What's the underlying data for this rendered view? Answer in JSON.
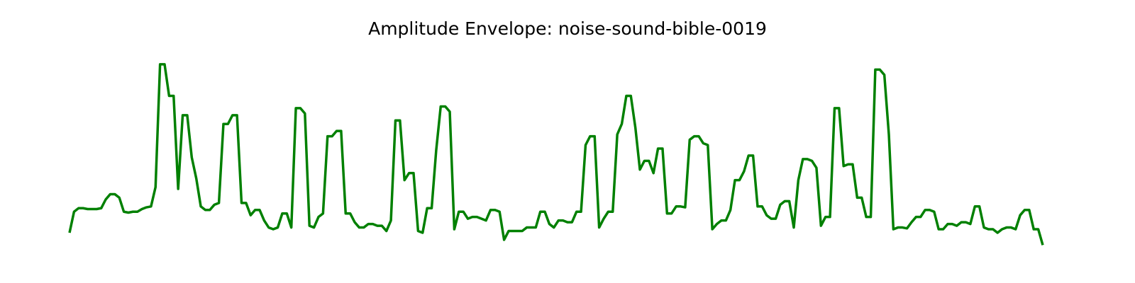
{
  "title": "Amplitude Envelope: noise-sound-bible-0019",
  "chart_data": {
    "type": "line",
    "title": "Amplitude Envelope: noise-sound-bible-0019",
    "xlabel": "",
    "ylabel": "",
    "axes_visible": false,
    "grid": false,
    "color": "#008000",
    "ylim": [
      0,
      1
    ],
    "values": [
      0.0,
      0.12,
      0.14,
      0.14,
      0.135,
      0.135,
      0.135,
      0.14,
      0.19,
      0.22,
      0.22,
      0.2,
      0.12,
      0.115,
      0.12,
      0.12,
      0.135,
      0.145,
      0.15,
      0.26,
      0.96,
      0.96,
      0.78,
      0.78,
      0.25,
      0.67,
      0.67,
      0.43,
      0.31,
      0.15,
      0.13,
      0.13,
      0.16,
      0.17,
      0.62,
      0.62,
      0.67,
      0.67,
      0.17,
      0.17,
      0.1,
      0.13,
      0.13,
      0.07,
      0.03,
      0.02,
      0.03,
      0.11,
      0.11,
      0.03,
      0.71,
      0.71,
      0.68,
      0.04,
      0.03,
      0.09,
      0.11,
      0.55,
      0.55,
      0.58,
      0.58,
      0.11,
      0.11,
      0.06,
      0.03,
      0.03,
      0.05,
      0.05,
      0.04,
      0.04,
      0.01,
      0.07,
      0.64,
      0.64,
      0.3,
      0.34,
      0.34,
      0.01,
      0.0,
      0.14,
      0.14,
      0.47,
      0.72,
      0.72,
      0.69,
      0.02,
      0.12,
      0.12,
      0.08,
      0.09,
      0.09,
      0.08,
      0.07,
      0.13,
      0.13,
      0.12,
      -0.04,
      0.01,
      0.01,
      0.01,
      0.01,
      0.03,
      0.03,
      0.03,
      0.12,
      0.12,
      0.05,
      0.03,
      0.07,
      0.07,
      0.06,
      0.06,
      0.12,
      0.12,
      0.5,
      0.55,
      0.55,
      0.03,
      0.08,
      0.12,
      0.12,
      0.56,
      0.62,
      0.78,
      0.78,
      0.6,
      0.36,
      0.41,
      0.41,
      0.34,
      0.48,
      0.48,
      0.11,
      0.11,
      0.15,
      0.15,
      0.145,
      0.53,
      0.55,
      0.55,
      0.51,
      0.5,
      0.02,
      0.05,
      0.07,
      0.07,
      0.13,
      0.3,
      0.3,
      0.35,
      0.44,
      0.44,
      0.15,
      0.15,
      0.1,
      0.08,
      0.08,
      0.16,
      0.18,
      0.18,
      0.03,
      0.3,
      0.42,
      0.42,
      0.41,
      0.37,
      0.04,
      0.09,
      0.09,
      0.71,
      0.71,
      0.38,
      0.39,
      0.39,
      0.2,
      0.2,
      0.09,
      0.09,
      0.93,
      0.93,
      0.9,
      0.56,
      0.02,
      0.03,
      0.03,
      0.025,
      0.06,
      0.09,
      0.09,
      0.13,
      0.13,
      0.12,
      0.02,
      0.02,
      0.05,
      0.05,
      0.04,
      0.06,
      0.06,
      0.05,
      0.15,
      0.15,
      0.03,
      0.02,
      0.02,
      0.0,
      0.02,
      0.03,
      0.03,
      0.02,
      0.1,
      0.13,
      0.13,
      0.02,
      0.02,
      -0.07
    ]
  }
}
